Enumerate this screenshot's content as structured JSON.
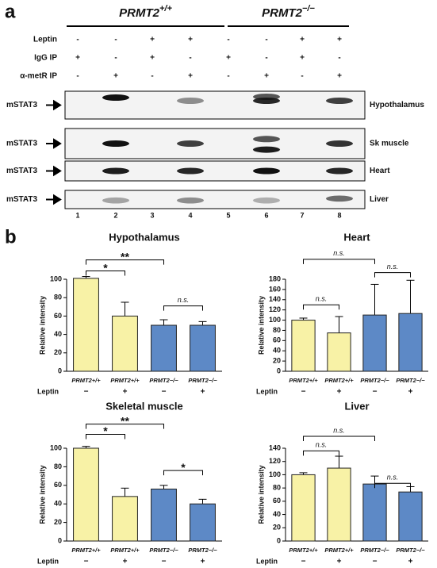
{
  "panel_a": {
    "label": "a",
    "groups": [
      {
        "gene": "PRMT2",
        "genotype": "+/+"
      },
      {
        "gene": "PRMT2",
        "genotype": "−/−"
      }
    ],
    "rows": [
      {
        "label": "Leptin",
        "values": [
          "-",
          "-",
          "+",
          "+",
          "-",
          "-",
          "+",
          "+"
        ]
      },
      {
        "label": "IgG IP",
        "values": [
          "+",
          "-",
          "+",
          "-",
          "+",
          "-",
          "+",
          "-"
        ]
      },
      {
        "label": "α-metR IP",
        "values": [
          "-",
          "+",
          "-",
          "+",
          "-",
          "+",
          "-",
          "+"
        ]
      }
    ],
    "blots": [
      {
        "left": "mSTAT3",
        "right": "Hypothalamus"
      },
      {
        "left": "mSTAT3",
        "right": "Sk muscle"
      },
      {
        "left": "mSTAT3",
        "right": "Heart"
      },
      {
        "left": "mSTAT3",
        "right": "Liver"
      }
    ],
    "lanes": [
      "1",
      "2",
      "3",
      "4",
      "5",
      "6",
      "7",
      "8"
    ]
  },
  "panel_b": {
    "label": "b"
  },
  "chart_data": [
    {
      "type": "bar",
      "title": "Hypothalamus",
      "y_label": "Relative intensity",
      "categories": [
        "PRMT2+/+",
        "PRMT2+/+",
        "PRMT2−/−",
        "PRMT2−/−"
      ],
      "leptin": {
        "label": "Leptin",
        "values": [
          "−",
          "+",
          "−",
          "+"
        ]
      },
      "colors": [
        "#f8f2a6",
        "#f8f2a6",
        "#5d89c6",
        "#5d89c6"
      ],
      "values": [
        101,
        60,
        50,
        50
      ],
      "errors": [
        2,
        15,
        6,
        4
      ],
      "ylim": [
        0,
        100
      ],
      "yticks": [
        0,
        20,
        40,
        60,
        80,
        100
      ],
      "brackets": [
        {
          "from": 0,
          "to": 2,
          "y": 121,
          "label": "**"
        },
        {
          "from": 0,
          "to": 1,
          "y": 109,
          "label": "*"
        },
        {
          "from": 2,
          "to": 3,
          "y": 71,
          "label": "n.s."
        }
      ]
    },
    {
      "type": "bar",
      "title": "Heart",
      "y_label": "Relative intensity",
      "categories": [
        "PRMT2+/+",
        "PRMT2+/+",
        "PRMT2−/−",
        "PRMT2−/−"
      ],
      "leptin": {
        "label": "Leptin",
        "values": [
          "−",
          "+",
          "−",
          "+"
        ]
      },
      "colors": [
        "#f8f2a6",
        "#f8f2a6",
        "#5d89c6",
        "#5d89c6"
      ],
      "values": [
        100,
        75,
        110,
        113
      ],
      "errors": [
        4,
        32,
        60,
        65
      ],
      "ylim": [
        0,
        180
      ],
      "yticks": [
        0,
        20,
        40,
        60,
        80,
        100,
        120,
        140,
        160,
        180
      ],
      "brackets": [
        {
          "from": 0,
          "to": 2,
          "y": 219,
          "label": "n.s."
        },
        {
          "from": 0,
          "to": 1,
          "y": 130,
          "label": "n.s."
        },
        {
          "from": 2,
          "to": 3,
          "y": 193,
          "label": "n.s."
        }
      ]
    },
    {
      "type": "bar",
      "title": "Skeletal muscle",
      "y_label": "Relative intensity",
      "categories": [
        "PRMT2+/+",
        "PRMT2+/+",
        "PRMT2−/−",
        "PRMT2−/−"
      ],
      "leptin": {
        "label": "Leptin",
        "values": [
          "−",
          "+",
          "−",
          "+"
        ]
      },
      "colors": [
        "#f8f2a6",
        "#f8f2a6",
        "#5d89c6",
        "#5d89c6"
      ],
      "values": [
        100,
        48,
        56,
        40
      ],
      "errors": [
        2,
        9,
        4,
        5
      ],
      "ylim": [
        0,
        100
      ],
      "yticks": [
        0,
        20,
        40,
        60,
        80,
        100
      ],
      "brackets": [
        {
          "from": 0,
          "to": 2,
          "y": 126,
          "label": "**"
        },
        {
          "from": 0,
          "to": 1,
          "y": 115,
          "label": "*"
        },
        {
          "from": 2,
          "to": 3,
          "y": 76,
          "label": "*"
        }
      ]
    },
    {
      "type": "bar",
      "title": "Liver",
      "y_label": "Relative intensity",
      "categories": [
        "PRMT2+/+",
        "PRMT2+/+",
        "PRMT2−/−",
        "PRMT2−/−"
      ],
      "leptin": {
        "label": "Leptin",
        "values": [
          "−",
          "+",
          "−",
          "+"
        ]
      },
      "colors": [
        "#f8f2a6",
        "#f8f2a6",
        "#5d89c6",
        "#5d89c6"
      ],
      "values": [
        100,
        110,
        86,
        74
      ],
      "errors": [
        3,
        18,
        12,
        8
      ],
      "ylim": [
        0,
        140
      ],
      "yticks": [
        0,
        20,
        40,
        60,
        80,
        100,
        120,
        140
      ],
      "brackets": [
        {
          "from": 0,
          "to": 2,
          "y": 158,
          "label": "n.s."
        },
        {
          "from": 0,
          "to": 1,
          "y": 136,
          "label": "n.s."
        },
        {
          "from": 2,
          "to": 3,
          "y": 87,
          "label": "n.s."
        }
      ]
    }
  ]
}
